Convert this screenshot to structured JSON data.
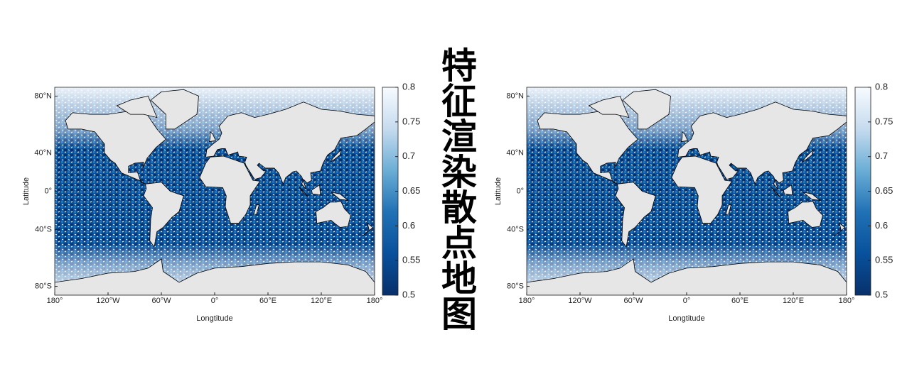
{
  "title": "特征渲染散点地图",
  "chart_data": [
    {
      "type": "scatter",
      "projection": "miller",
      "xlabel": "Longtitude",
      "ylabel": "Latitude",
      "xlim": [
        -180,
        180
      ],
      "ylim": [
        -84,
        84
      ],
      "xticks": [
        {
          "value": -180,
          "label": "180°"
        },
        {
          "value": -120,
          "label": "120°W"
        },
        {
          "value": -60,
          "label": "60°W"
        },
        {
          "value": 0,
          "label": "0°"
        },
        {
          "value": 60,
          "label": "60°E"
        },
        {
          "value": 120,
          "label": "120°E"
        },
        {
          "value": 180,
          "label": "180°"
        }
      ],
      "yticks": [
        {
          "value": 80,
          "label": "80°N"
        },
        {
          "value": 40,
          "label": "40°N"
        },
        {
          "value": 0,
          "label": "0°"
        },
        {
          "value": -40,
          "label": "40°S"
        },
        {
          "value": -80,
          "label": "80°S"
        }
      ],
      "colormap": [
        "#08306b",
        "#08519c",
        "#2171b5",
        "#6baed6",
        "#c6dbef",
        "#f7fbff"
      ],
      "clim": [
        0.5,
        0.8
      ],
      "cticks": [
        0.5,
        0.55,
        0.6,
        0.65,
        0.7,
        0.75,
        0.8
      ]
    },
    {
      "type": "scatter",
      "projection": "miller",
      "xlabel": "Longtitude",
      "ylabel": "Latitude",
      "xlim": [
        -180,
        180
      ],
      "ylim": [
        -84,
        84
      ],
      "xticks": [
        {
          "value": -180,
          "label": "180°"
        },
        {
          "value": -120,
          "label": "120°W"
        },
        {
          "value": -60,
          "label": "60°W"
        },
        {
          "value": 0,
          "label": "0°"
        },
        {
          "value": 60,
          "label": "60°E"
        },
        {
          "value": 120,
          "label": "120°E"
        },
        {
          "value": 180,
          "label": "180°"
        }
      ],
      "yticks": [
        {
          "value": 80,
          "label": "80°N"
        },
        {
          "value": 40,
          "label": "40°N"
        },
        {
          "value": 0,
          "label": "0°"
        },
        {
          "value": -40,
          "label": "40°S"
        },
        {
          "value": -80,
          "label": "80°S"
        }
      ],
      "colormap": [
        "#08306b",
        "#08519c",
        "#2171b5",
        "#6baed6",
        "#c6dbef",
        "#f7fbff"
      ],
      "clim": [
        0.5,
        0.8
      ],
      "cticks": [
        0.5,
        0.55,
        0.6,
        0.65,
        0.7,
        0.75,
        0.8
      ]
    }
  ]
}
